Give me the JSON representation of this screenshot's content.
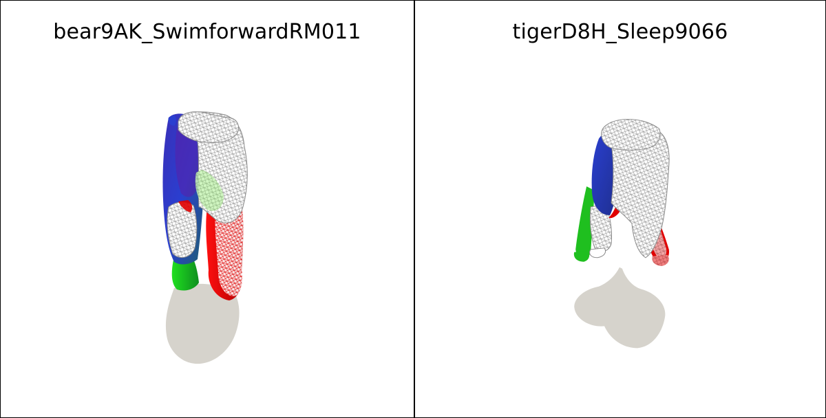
{
  "panels": [
    {
      "title": "bear9AK_SwimforwardRM011",
      "subject": "bear-mesh"
    },
    {
      "title": "tigerD8H_Sleep9066",
      "subject": "tiger-mesh"
    }
  ],
  "colors": {
    "background": "#ffffff",
    "border": "#000000",
    "shadow": "#d6d3cc",
    "wireframe": "#9a9a9a",
    "red": "#e00000",
    "green": "#1fbf1f",
    "blue": "#2a3fd0",
    "purple": "#5a1fa8"
  }
}
